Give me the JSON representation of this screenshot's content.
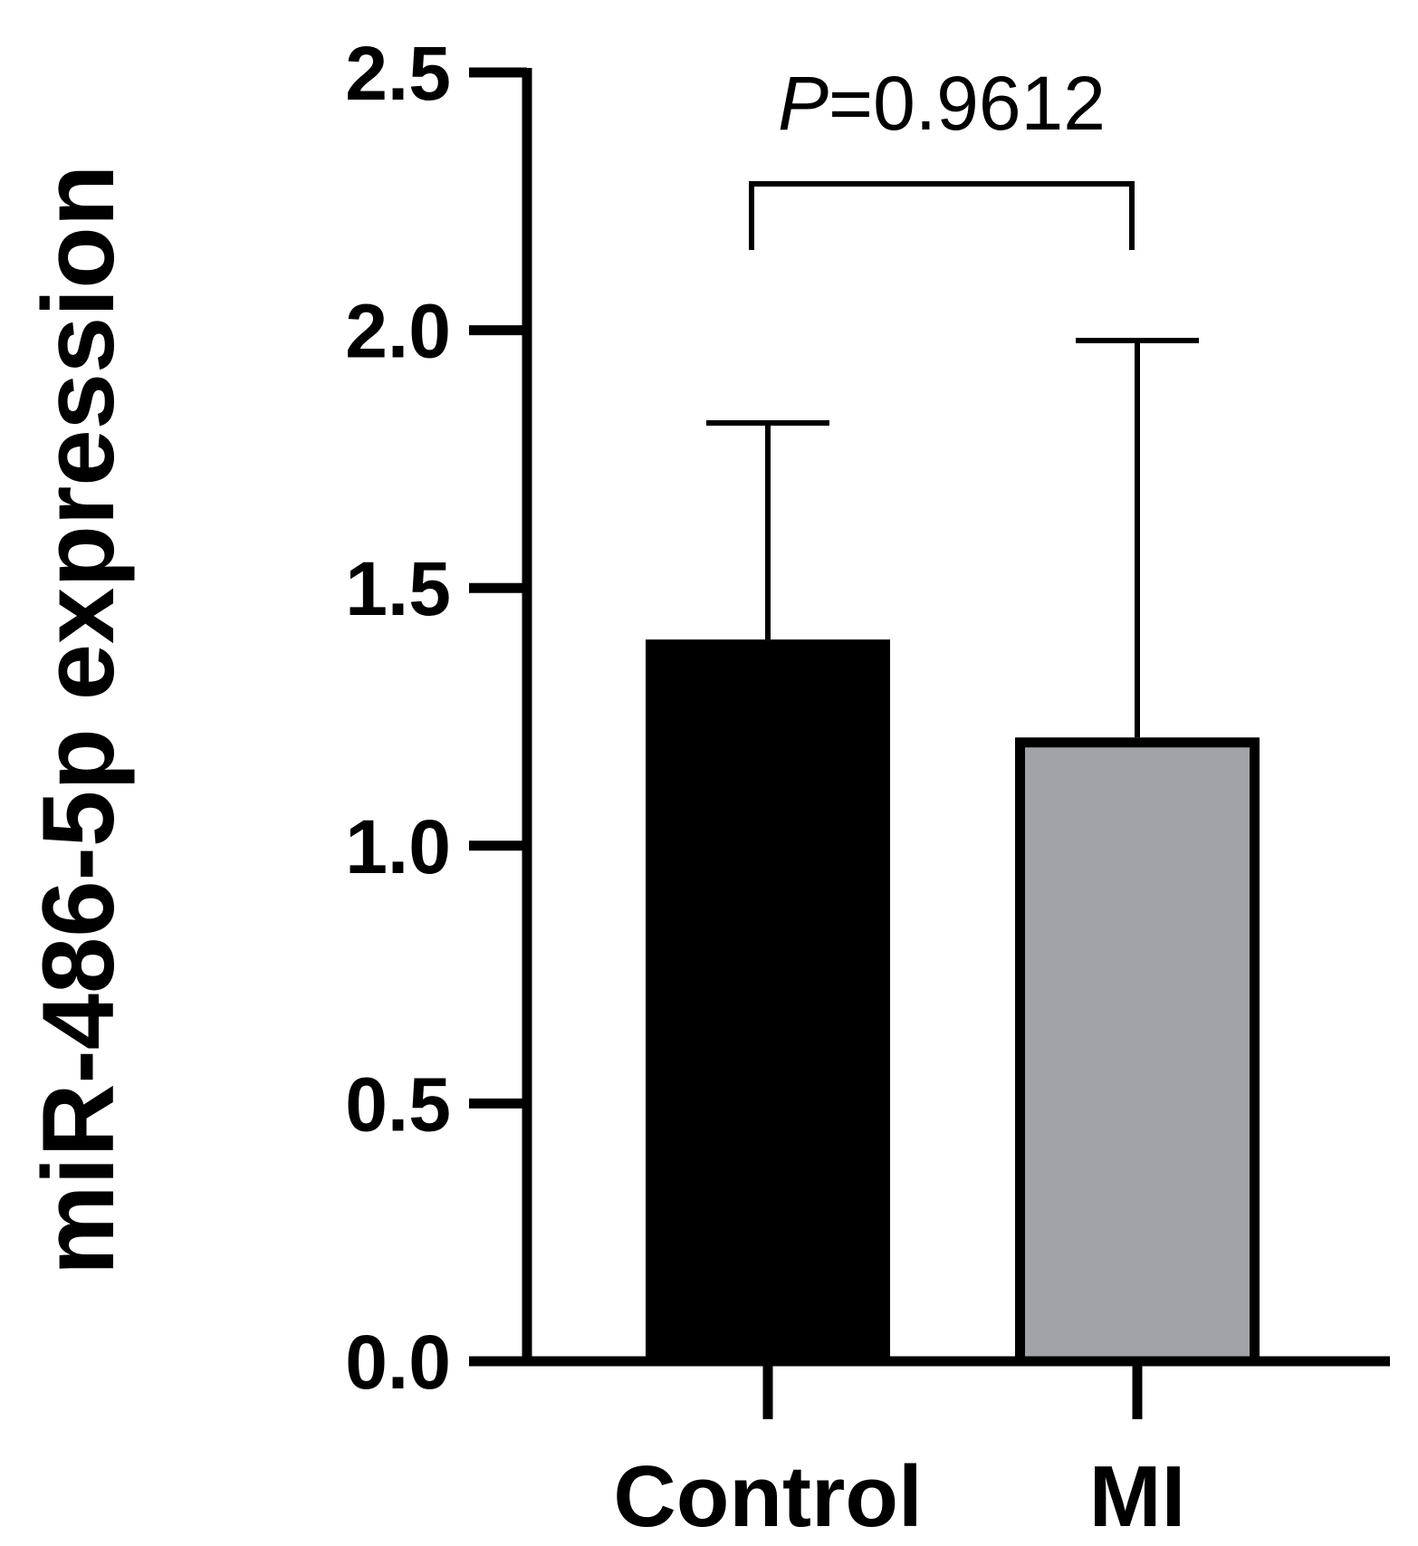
{
  "chart_data": {
    "type": "bar",
    "categories": [
      "Control",
      "MI"
    ],
    "values": [
      1.4,
      1.21
    ],
    "error_upper": [
      1.82,
      1.98
    ],
    "colors": [
      "#000000",
      "#a2a3a6"
    ],
    "bar_edge_color": "#000000",
    "ylabel": "miR-486-5p expression",
    "xlabel": "",
    "ylim": [
      0,
      2.5
    ],
    "yticks": [
      "0.0",
      "0.5",
      "1.0",
      "1.5",
      "2.0",
      "2.5"
    ],
    "annotation": {
      "p_symbol": "P",
      "p_value_text": "=0.9612",
      "compare": [
        "Control",
        "MI"
      ]
    },
    "grid": false
  }
}
